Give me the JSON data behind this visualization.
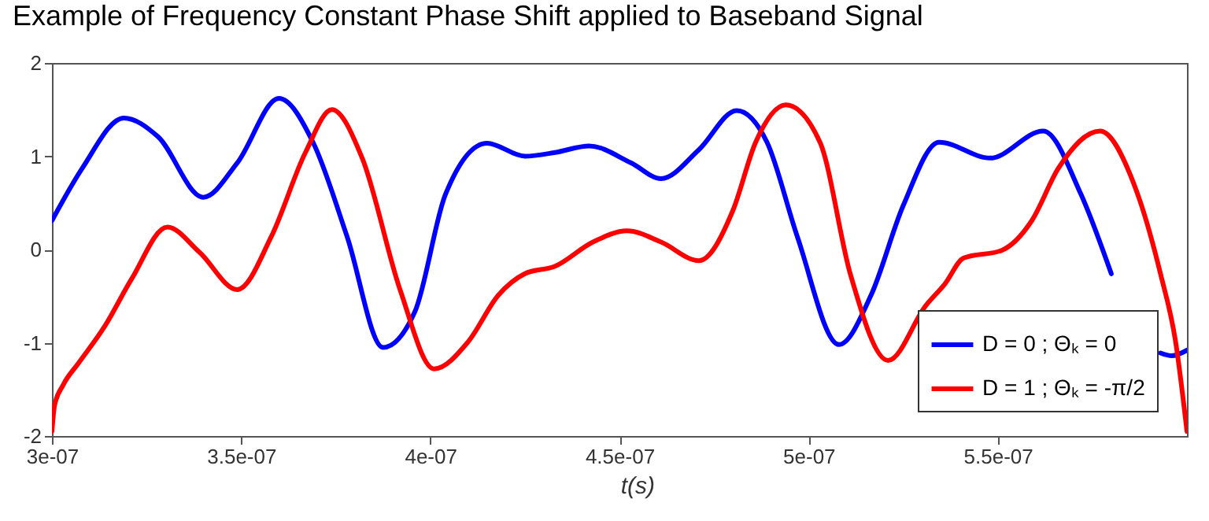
{
  "chart_data": {
    "type": "line",
    "title": "Example of Frequency Constant Phase Shift applied to Baseband Signal",
    "xlabel": "t(s)",
    "xlim": [
      3e-07,
      6e-07
    ],
    "xticks": [
      {
        "value": 3e-07,
        "label": "3e-07"
      },
      {
        "value": 3.5e-07,
        "label": "3.5e-07"
      },
      {
        "value": 4e-07,
        "label": "4e-07"
      },
      {
        "value": 4.5e-07,
        "label": "4.5e-07"
      },
      {
        "value": 5e-07,
        "label": "5e-07"
      },
      {
        "value": 5.5e-07,
        "label": "5.5e-07"
      }
    ],
    "ylim": [
      -2,
      2
    ],
    "yticks": [
      -2,
      -1,
      0,
      1,
      2
    ],
    "grid": false,
    "legend": "bottom right",
    "line_style": "solid",
    "series": [
      {
        "name": "D = 0 ; Θₖ = 0",
        "color": "#0000ff",
        "x": [
          3e-07,
          3.08e-07,
          3.19e-07,
          3.28e-07,
          3.4e-07,
          3.49e-07,
          3.6e-07,
          3.69e-07,
          3.78e-07,
          3.875e-07,
          3.96e-07,
          4.04e-07,
          4.15e-07,
          4.25e-07,
          4.33e-07,
          4.42e-07,
          4.53e-07,
          4.61e-07,
          4.71e-07,
          4.81e-07,
          4.89e-07,
          4.97e-07,
          5.08e-07,
          5.165e-07,
          5.25e-07,
          5.345e-07,
          5.48e-07,
          5.62e-07,
          5.72e-07,
          5.8e-07,
          5.88e-07,
          5.93e-07,
          5.96e-07,
          6e-07
        ],
        "values": [
          0.31,
          0.87,
          1.41,
          1.21,
          0.56,
          0.93,
          1.62,
          1.15,
          0.14,
          -1.05,
          -0.66,
          0.59,
          1.14,
          1.0,
          1.04,
          1.11,
          0.93,
          0.76,
          1.07,
          1.49,
          1.15,
          0.14,
          -1.02,
          -0.49,
          0.47,
          1.15,
          0.98,
          1.27,
          0.59,
          -0.26,
          null,
          -1.11,
          -1.14,
          -1.08
        ]
      },
      {
        "name": "D = 1 ; Θₖ = -π/2",
        "color": "#ff0000",
        "x": [
          3e-07,
          3.007e-07,
          3.03e-07,
          3.07e-07,
          3.14e-07,
          3.21e-07,
          3.305e-07,
          3.39e-07,
          3.49e-07,
          3.58e-07,
          3.67e-07,
          3.74e-07,
          3.82e-07,
          3.92e-07,
          4.01e-07,
          4.1e-07,
          4.18e-07,
          4.25e-07,
          4.33e-07,
          4.43e-07,
          4.52e-07,
          4.61e-07,
          4.71e-07,
          4.8e-07,
          4.86e-07,
          4.94e-07,
          5.03e-07,
          5.11e-07,
          5.21e-07,
          5.31e-07,
          5.36e-07,
          5.41e-07,
          5.51e-07,
          5.59e-07,
          5.66e-07,
          5.77e-07,
          5.86e-07,
          5.93e-07,
          5.97e-07,
          6e-07
        ],
        "values": [
          -1.95,
          -1.67,
          -1.45,
          -1.22,
          -0.82,
          -0.32,
          0.24,
          -0.03,
          -0.43,
          0.14,
          1.04,
          1.5,
          0.98,
          -0.43,
          -1.28,
          -0.99,
          -0.49,
          -0.26,
          -0.18,
          0.08,
          0.2,
          0.08,
          -0.12,
          0.42,
          1.15,
          1.55,
          1.15,
          -0.26,
          -1.19,
          -0.6,
          -0.37,
          -0.09,
          -0.01,
          0.31,
          0.87,
          1.27,
          0.7,
          -0.26,
          -0.99,
          -1.95
        ]
      }
    ]
  }
}
